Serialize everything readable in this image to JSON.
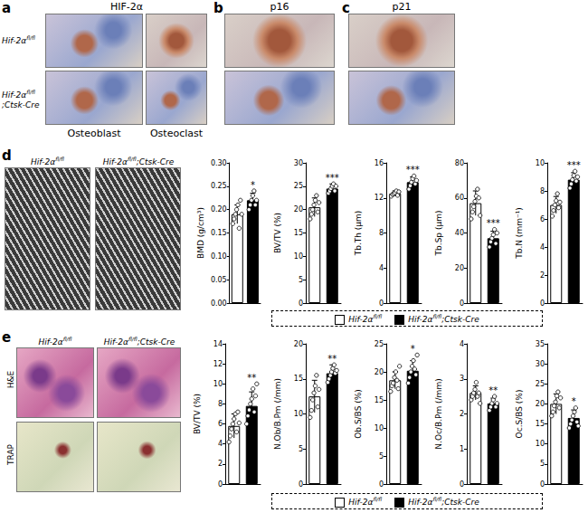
{
  "figure": {
    "groups": [
      {
        "name": "Hif-2α",
        "sup": "fl/fl",
        "color": "#ffffff"
      },
      {
        "name": "Hif-2α",
        "sup": "fl/fl",
        "suffix": ";Ctsk-Cre",
        "color": "#000000"
      }
    ],
    "panels": {
      "a": {
        "letter": "a",
        "title": "HIF-2α",
        "columns": [
          "Osteoblast",
          "Osteoclast"
        ]
      },
      "b": {
        "letter": "b",
        "title": "p16"
      },
      "c": {
        "letter": "c",
        "title": "p21"
      },
      "d": {
        "letter": "d"
      },
      "e": {
        "letter": "e",
        "rows": [
          "H&E",
          "TRAP"
        ]
      }
    }
  },
  "chart_data": [
    {
      "type": "bar",
      "ylabel": "BMD (g/cm³)",
      "categories": [
        null,
        null
      ],
      "values": [
        0.19,
        0.22
      ],
      "colors": [
        "#ffffff",
        "#000000"
      ],
      "errors": [
        0.02,
        0.015
      ],
      "points": [
        [
          0.17,
          0.18,
          0.19,
          0.2,
          0.21,
          0.16,
          0.22,
          0.19
        ],
        [
          0.2,
          0.21,
          0.22,
          0.23,
          0.24,
          0.21,
          0.22
        ]
      ],
      "significance": [
        null,
        "*"
      ],
      "ylim": [
        0,
        0.3
      ],
      "yticks": [
        {
          "value": 0,
          "label": "0.00"
        },
        0.05,
        {
          "value": 0.1,
          "label": "0.10"
        },
        0.15,
        {
          "value": 0.2,
          "label": "0.20"
        },
        0.25,
        {
          "value": 0.3,
          "label": "0.30"
        }
      ],
      "tick_labels": "y",
      "grid": false
    },
    {
      "type": "bar",
      "ylabel": "BV/TV (%)",
      "categories": [
        null,
        null
      ],
      "values": [
        20.5,
        24.5
      ],
      "colors": [
        "#ffffff",
        "#000000"
      ],
      "errors": [
        2,
        1
      ],
      "points": [
        [
          18,
          19,
          20,
          21,
          22,
          23,
          19.5,
          21.5
        ],
        [
          23.5,
          24,
          24.5,
          25,
          25.5,
          24,
          25
        ]
      ],
      "significance": [
        null,
        "***"
      ],
      "ylim": [
        0,
        30
      ],
      "yticks": [
        0,
        5,
        10,
        15,
        20,
        25,
        30
      ],
      "tick_labels": "y",
      "grid": false
    },
    {
      "type": "bar",
      "ylabel": "Tb.Th (μm)",
      "categories": [
        null,
        null
      ],
      "values": [
        12.5,
        13.8
      ],
      "colors": [
        "#ffffff",
        "#000000"
      ],
      "errors": [
        0.3,
        0.6
      ],
      "points": [
        [
          12.2,
          12.4,
          12.5,
          12.6,
          12.8,
          12.3,
          12.7
        ],
        [
          13,
          13.4,
          13.8,
          14.2,
          14.5,
          13.6,
          14
        ]
      ],
      "significance": [
        null,
        "***"
      ],
      "ylim": [
        0,
        16
      ],
      "yticks": [
        0,
        4,
        8,
        12,
        16
      ],
      "tick_labels": "y",
      "grid": false
    },
    {
      "type": "bar",
      "ylabel": "Tb.Sp (μm)",
      "categories": [
        null,
        null
      ],
      "values": [
        57,
        37
      ],
      "colors": [
        "#ffffff",
        "#000000"
      ],
      "errors": [
        7,
        4
      ],
      "points": [
        [
          48,
          52,
          55,
          58,
          61,
          65,
          60,
          50
        ],
        [
          32,
          35,
          37,
          39,
          42,
          34,
          40
        ]
      ],
      "significance": [
        null,
        "***"
      ],
      "ylim": [
        0,
        80
      ],
      "yticks": [
        0,
        20,
        40,
        60,
        80
      ],
      "tick_labels": "y",
      "grid": false
    },
    {
      "type": "bar",
      "ylabel": "Tb.N (mm⁻¹)",
      "categories": [
        null,
        null
      ],
      "values": [
        7.0,
        8.8
      ],
      "colors": [
        "#ffffff",
        "#000000"
      ],
      "errors": [
        0.6,
        0.5
      ],
      "points": [
        [
          6.2,
          6.6,
          7,
          7.3,
          7.8,
          6.8,
          7.2
        ],
        [
          8.2,
          8.5,
          8.8,
          9.1,
          9.4,
          8.7,
          9
        ]
      ],
      "significance": [
        null,
        "***"
      ],
      "ylim": [
        0,
        10
      ],
      "yticks": [
        0,
        2,
        4,
        6,
        8,
        10
      ],
      "tick_labels": "y",
      "grid": false
    },
    {
      "type": "bar",
      "ylabel": "BV/TV (%)",
      "categories": [
        null,
        null
      ],
      "values": [
        5.8,
        7.8
      ],
      "colors": [
        "#ffffff",
        "#000000"
      ],
      "errors": [
        1.2,
        1.4
      ],
      "points": [
        [
          4.2,
          4.8,
          5.5,
          6,
          6.5,
          7,
          5.2,
          7.2,
          6.1
        ],
        [
          6,
          6.8,
          7.4,
          8,
          8.5,
          9.5,
          7.2,
          8.8,
          10
        ]
      ],
      "significance": [
        null,
        "**"
      ],
      "ylim": [
        0,
        14
      ],
      "yticks": [
        0,
        2,
        4,
        6,
        8,
        10,
        12,
        14
      ],
      "tick_labels": "y",
      "grid": false
    },
    {
      "type": "bar",
      "ylabel": "N.Ob/B.Pm (/mm)",
      "categories": [
        null,
        null
      ],
      "values": [
        12.5,
        15.8
      ],
      "colors": [
        "#ffffff",
        "#000000"
      ],
      "errors": [
        2.3,
        1.2
      ],
      "points": [
        [
          9.5,
          10.5,
          12,
          13,
          14,
          15.5,
          11,
          13.5
        ],
        [
          14.5,
          15,
          15.5,
          16,
          16.5,
          17,
          15.8,
          16.2
        ]
      ],
      "significance": [
        null,
        "**"
      ],
      "ylim": [
        0,
        20
      ],
      "yticks": [
        0,
        5,
        10,
        15,
        20
      ],
      "tick_labels": "y",
      "grid": false
    },
    {
      "type": "bar",
      "ylabel": "Ob.S/BS (%)",
      "categories": [
        null,
        null
      ],
      "values": [
        18.5,
        20.2
      ],
      "colors": [
        "#ffffff",
        "#000000"
      ],
      "errors": [
        1.5,
        1.8
      ],
      "points": [
        [
          16.5,
          17.5,
          18,
          19,
          20,
          18.5,
          17,
          21
        ],
        [
          18,
          19,
          20,
          21,
          22,
          20.5,
          19.5,
          23
        ]
      ],
      "significance": [
        null,
        "*"
      ],
      "ylim": [
        0,
        25
      ],
      "yticks": [
        0,
        5,
        10,
        15,
        20,
        25
      ],
      "tick_labels": "y",
      "grid": false
    },
    {
      "type": "bar",
      "ylabel": "N.Oc/B.Pm (/mm)",
      "categories": [
        null,
        null
      ],
      "values": [
        2.6,
        2.3
      ],
      "colors": [
        "#ffffff",
        "#000000"
      ],
      "errors": [
        0.2,
        0.15
      ],
      "points": [
        [
          2.4,
          2.5,
          2.6,
          2.7,
          2.9,
          2.5,
          2.6,
          2.3
        ],
        [
          2.1,
          2.2,
          2.3,
          2.4,
          2.5,
          2.2,
          2.3
        ]
      ],
      "significance": [
        null,
        "**"
      ],
      "ylim": [
        0,
        4
      ],
      "yticks": [
        0,
        1,
        2,
        3,
        4
      ],
      "tick_labels": "y",
      "grid": false
    },
    {
      "type": "bar",
      "ylabel": "Oc.S/BS (%)",
      "categories": [
        null,
        null
      ],
      "values": [
        20,
        16.5
      ],
      "colors": [
        "#ffffff",
        "#000000"
      ],
      "errors": [
        2.5,
        2
      ],
      "points": [
        [
          17,
          18,
          19.5,
          20.5,
          22,
          23,
          19,
          21.5
        ],
        [
          14,
          15,
          16,
          17,
          18,
          19,
          15.5,
          14.5
        ]
      ],
      "significance": [
        null,
        "*"
      ],
      "ylim": [
        0,
        35
      ],
      "yticks": [
        0,
        5,
        10,
        15,
        20,
        25,
        30,
        35
      ],
      "tick_labels": "y",
      "grid": false
    }
  ]
}
